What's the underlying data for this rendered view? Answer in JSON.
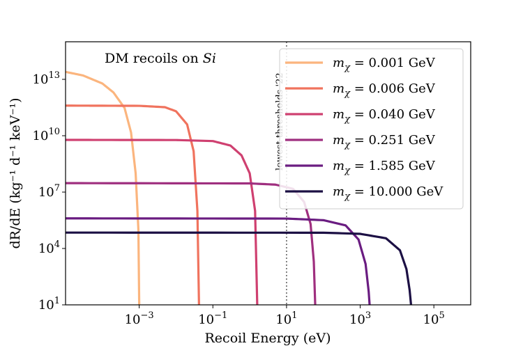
{
  "chart_data": {
    "type": "line",
    "title": "DM recoils on Si",
    "xlabel": "Recoil Energy (eV)",
    "ylabel": "dR/dE (kg⁻¹ d⁻¹ keV⁻¹)",
    "xscale": "log",
    "yscale": "log",
    "xlim": [
      1e-05,
      1000000.0
    ],
    "ylim": [
      10,
      1000000000000000.0
    ],
    "x_ticks": [
      {
        "value": 0.001,
        "base": "10",
        "exp": "−3"
      },
      {
        "value": 0.1,
        "base": "10",
        "exp": "−1"
      },
      {
        "value": 10,
        "base": "10",
        "exp": "1"
      },
      {
        "value": 1000,
        "base": "10",
        "exp": "3"
      },
      {
        "value": 100000,
        "base": "10",
        "exp": "5"
      }
    ],
    "y_ticks": [
      {
        "value": 10,
        "base": "10",
        "exp": "1"
      },
      {
        "value": 10000,
        "base": "10",
        "exp": "4"
      },
      {
        "value": 10000000,
        "base": "10",
        "exp": "7"
      },
      {
        "value": 10000000000,
        "base": "10",
        "exp": "10"
      },
      {
        "value": 10000000000000,
        "base": "10",
        "exp": "13"
      }
    ],
    "grid": false,
    "legend_position": "upper right",
    "vertical_line": {
      "x": 10,
      "label": "lowest thresholds '22",
      "style": "dotted",
      "color": "#777777"
    },
    "series": [
      {
        "name": "mχ = 0.001 GeV",
        "mass_label": "0.001 GeV",
        "color": "#fbb57e",
        "points": [
          [
            1e-05,
            25000000000000.0
          ],
          [
            3e-05,
            16000000000000.0
          ],
          [
            0.0001,
            6000000000000.0
          ],
          [
            0.0002,
            2000000000000.0
          ],
          [
            0.0004,
            300000000000.0
          ],
          [
            0.0006,
            15000000000.0
          ],
          [
            0.0008,
            100000000.0
          ],
          [
            0.00095,
            100000.0
          ],
          [
            0.001,
            10
          ]
        ]
      },
      {
        "name": "mχ = 0.006 GeV",
        "mass_label": "0.006 GeV",
        "color": "#f0735e",
        "points": [
          [
            1e-05,
            400000000000.0
          ],
          [
            0.001,
            390000000000.0
          ],
          [
            0.005,
            330000000000.0
          ],
          [
            0.01,
            200000000000.0
          ],
          [
            0.02,
            40000000000.0
          ],
          [
            0.03,
            1500000000.0
          ],
          [
            0.038,
            1000000.0
          ],
          [
            0.042,
            10
          ]
        ]
      },
      {
        "name": "mχ = 0.040 GeV",
        "mass_label": "0.040 GeV",
        "color": "#cf4070",
        "points": [
          [
            1e-05,
            6000000000.0
          ],
          [
            0.01,
            5900000000.0
          ],
          [
            0.1,
            5200000000.0
          ],
          [
            0.3,
            3000000000.0
          ],
          [
            0.6,
            900000000.0
          ],
          [
            1.0,
            100000000.0
          ],
          [
            1.4,
            1000000.0
          ],
          [
            1.6,
            10
          ]
        ]
      },
      {
        "name": "mχ = 0.251 GeV",
        "mass_label": "0.251 GeV",
        "color": "#9f2f7f",
        "points": [
          [
            1e-05,
            30000000.0
          ],
          [
            1.0,
            29000000.0
          ],
          [
            5.0,
            25000000.0
          ],
          [
            15,
            15000000.0
          ],
          [
            30,
            3000000.0
          ],
          [
            45,
            200000.0
          ],
          [
            55,
            2000.0
          ],
          [
            60,
            10
          ]
        ]
      },
      {
        "name": "mχ = 1.585 GeV",
        "mass_label": "1.585 GeV",
        "color": "#6a1c81",
        "points": [
          [
            1e-05,
            400000.0
          ],
          [
            10,
            390000.0
          ],
          [
            100,
            320000.0
          ],
          [
            400,
            170000.0
          ],
          [
            900,
            30000.0
          ],
          [
            1400,
            1500.0
          ],
          [
            1700,
            50
          ],
          [
            1800,
            10
          ]
        ]
      },
      {
        "name": "mχ = 10.000 GeV",
        "mass_label": "10.000 GeV",
        "color": "#1c1044",
        "points": [
          [
            1e-05,
            70000.0
          ],
          [
            100,
            69000.0
          ],
          [
            1000,
            60000.0
          ],
          [
            5000,
            35000.0
          ],
          [
            12000,
            8000.0
          ],
          [
            18000,
            800
          ],
          [
            22000,
            60
          ],
          [
            24000,
            10
          ]
        ]
      }
    ]
  }
}
